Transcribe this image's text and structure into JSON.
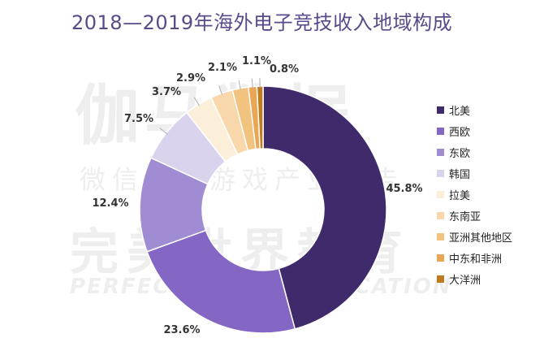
{
  "chart_data": {
    "type": "pie",
    "title": "2018—2019年海外电子竞技收入地域构成",
    "categories": [
      "北美",
      "西欧",
      "东欧",
      "韩国",
      "拉美",
      "东南亚",
      "亚洲其他地区",
      "中东和非洲",
      "大洋洲"
    ],
    "values": [
      45.8,
      23.6,
      12.4,
      7.5,
      3.7,
      2.9,
      2.1,
      1.1,
      0.8
    ],
    "value_labels": [
      "45.8%",
      "23.6%",
      "12.4%",
      "7.5%",
      "3.7%",
      "2.9%",
      "2.1%",
      "1.1%",
      "0.8%"
    ],
    "colors": [
      "#3f2a6b",
      "#8466c4",
      "#a08cd2",
      "#dad3ee",
      "#fbefd9",
      "#f8d7ab",
      "#f2c27f",
      "#eba653",
      "#c07b1e"
    ],
    "donut": true,
    "legend_position": "right"
  },
  "watermark": {
    "line1": "伽马数据",
    "line2": "微信号：游戏产业报告",
    "line3": "完美世界教育",
    "line4": "PERFECT WORLD EDUCATION"
  }
}
